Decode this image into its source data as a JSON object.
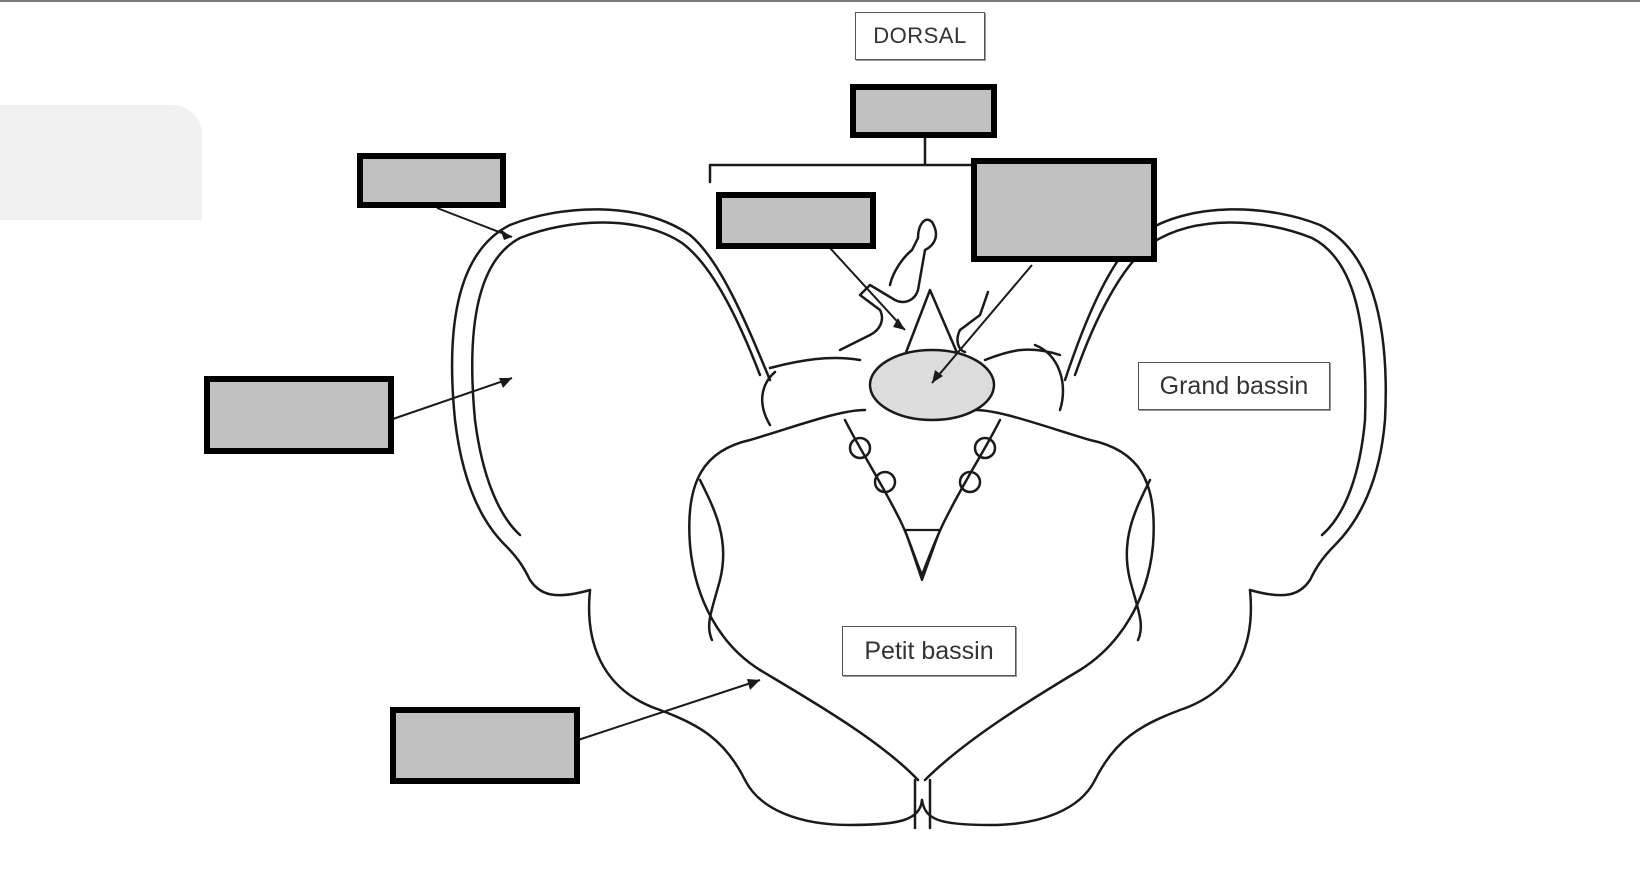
{
  "labels": {
    "dorsal": "DORSAL",
    "grand_bassin": "Grand bassin",
    "petit_bassin": "Petit bassin"
  },
  "answer_boxes": [
    {
      "id": "top-center",
      "text": ""
    },
    {
      "id": "upper-left",
      "text": ""
    },
    {
      "id": "middle-left",
      "text": ""
    },
    {
      "id": "center-left",
      "text": ""
    },
    {
      "id": "center-right",
      "text": ""
    },
    {
      "id": "lower-left",
      "text": ""
    }
  ],
  "colors": {
    "blank_fill": "#c0c0c0",
    "blank_border": "#000000",
    "line": "#1a1a1a",
    "vertebral_body": "#dcdcdc"
  }
}
